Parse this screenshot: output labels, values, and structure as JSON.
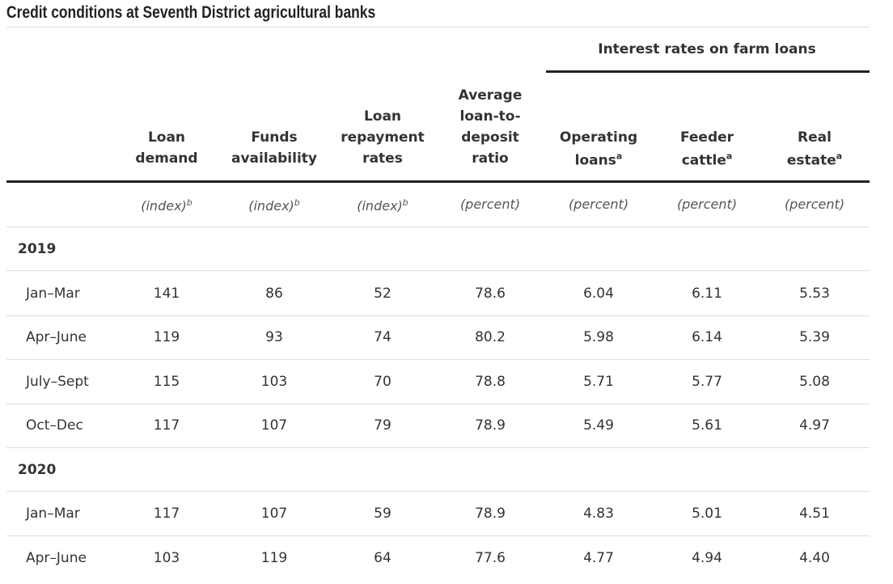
{
  "title": "Credit conditions at Seventh District agricultural banks",
  "group_header": "Interest rates on farm loans",
  "columns": [
    {
      "lines": [
        "Loan",
        "demand"
      ],
      "unit": "(index)",
      "unit_sup": "b"
    },
    {
      "lines": [
        "Funds",
        "availability"
      ],
      "unit": "(index)",
      "unit_sup": "b"
    },
    {
      "lines": [
        "Loan",
        "repayment",
        "rates"
      ],
      "unit": "(index)",
      "unit_sup": "b"
    },
    {
      "lines": [
        "Average",
        "loan-to-",
        "deposit",
        "ratio"
      ],
      "unit": "(percent)"
    },
    {
      "lines": [
        "Operating",
        "loans"
      ],
      "sup": "a",
      "unit": "(percent)"
    },
    {
      "lines": [
        "Feeder",
        "cattle"
      ],
      "sup": "a",
      "unit": "(percent)"
    },
    {
      "lines": [
        "Real",
        "estate"
      ],
      "sup": "a",
      "unit": "(percent)"
    }
  ],
  "sections": [
    {
      "year": "2019",
      "rows": [
        {
          "label": "Jan–Mar",
          "cells": [
            "141",
            "86",
            "52",
            "78.6",
            "6.04",
            "6.11",
            "5.53"
          ]
        },
        {
          "label": "Apr–June",
          "cells": [
            "119",
            "93",
            "74",
            "80.2",
            "5.98",
            "6.14",
            "5.39"
          ]
        },
        {
          "label": "July–Sept",
          "cells": [
            "115",
            "103",
            "70",
            "78.8",
            "5.71",
            "5.77",
            "5.08"
          ]
        },
        {
          "label": "Oct–Dec",
          "cells": [
            "117",
            "107",
            "79",
            "78.9",
            "5.49",
            "5.61",
            "4.97"
          ]
        }
      ]
    },
    {
      "year": "2020",
      "rows": [
        {
          "label": "Jan–Mar",
          "cells": [
            "117",
            "107",
            "59",
            "78.9",
            "4.83",
            "5.01",
            "4.51"
          ]
        },
        {
          "label": "Apr–June",
          "cells": [
            "103",
            "119",
            "64",
            "77.6",
            "4.77",
            "4.94",
            "4.40"
          ]
        }
      ]
    }
  ]
}
